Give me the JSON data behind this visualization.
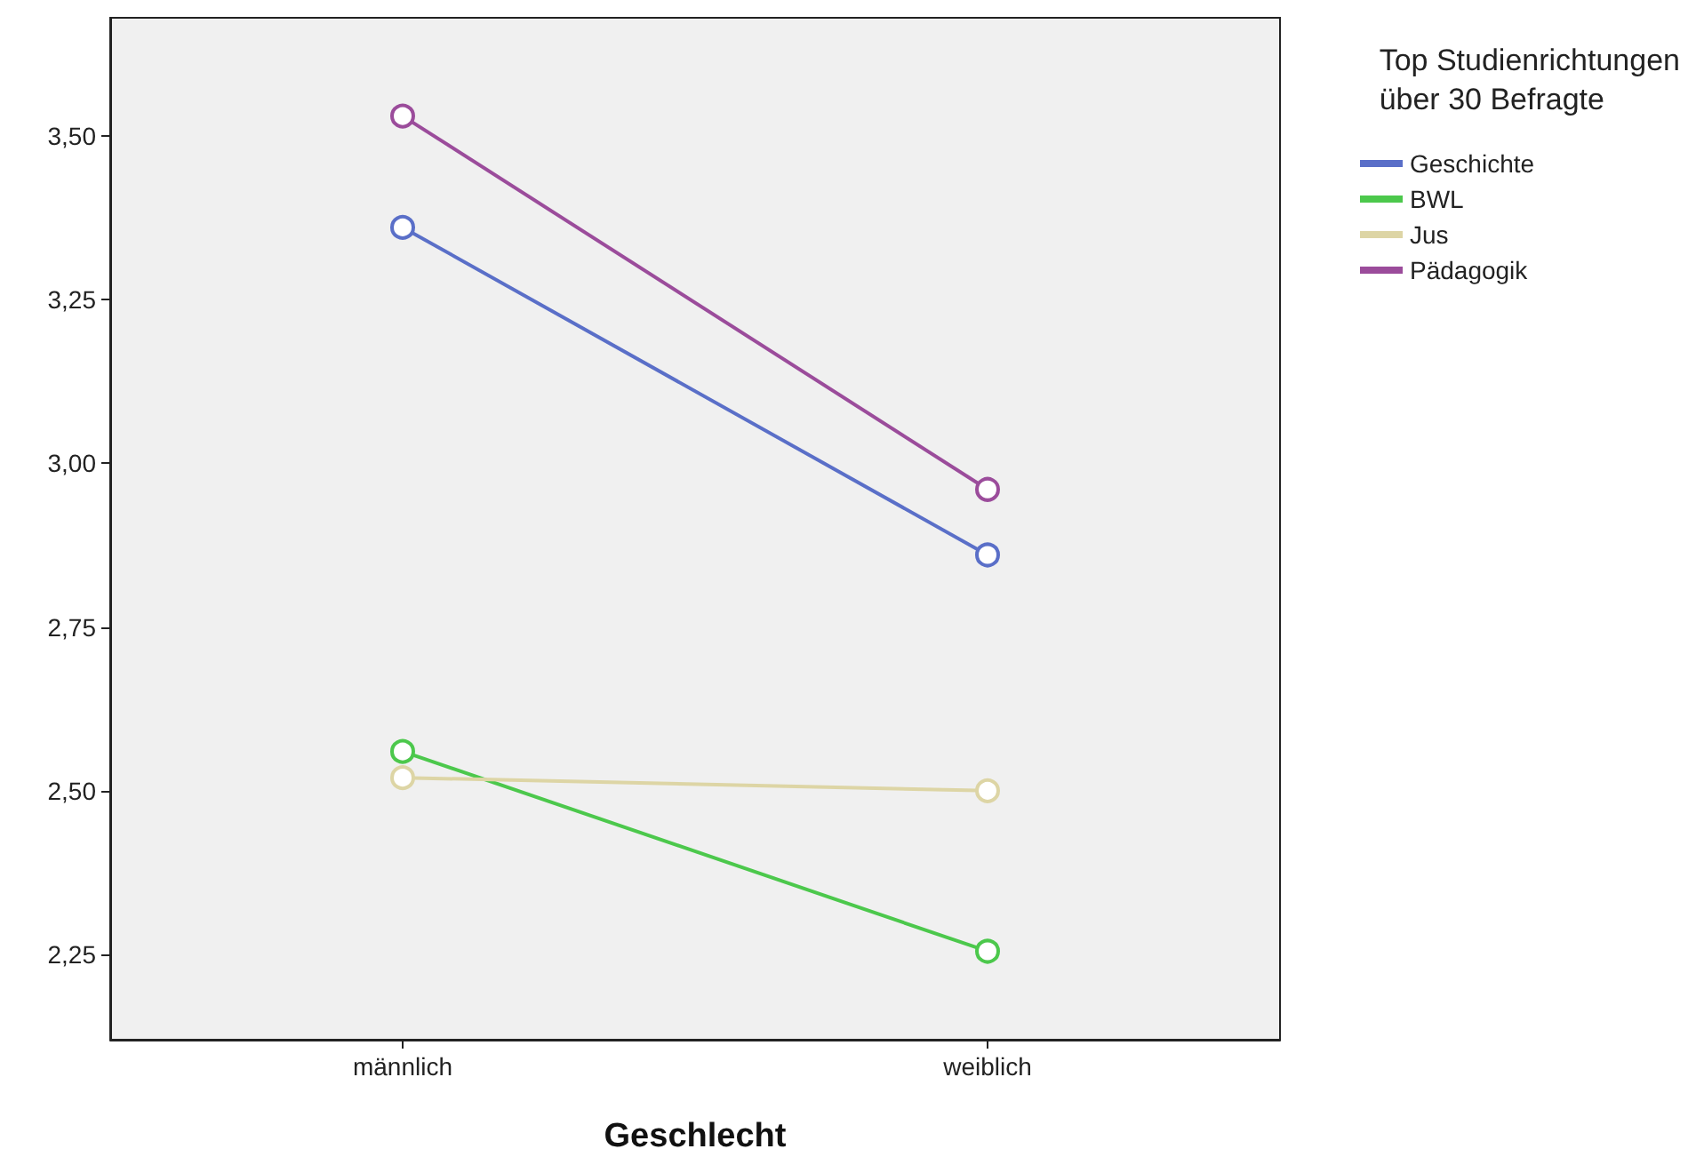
{
  "chart_data": {
    "type": "line",
    "xlabel": "Geschlecht",
    "legend_title": "Top Studienrichtungen\nüber 30 Befragte",
    "categories": [
      "männlich",
      "weiblich"
    ],
    "series": [
      {
        "name": "Geschichte",
        "color": "#5a6fc8",
        "values": [
          3.36,
          2.86
        ]
      },
      {
        "name": "BWL",
        "color": "#4cc84c",
        "values": [
          2.56,
          2.255
        ]
      },
      {
        "name": "Jus",
        "color": "#ddd5a5",
        "values": [
          2.52,
          2.5
        ]
      },
      {
        "name": "Pädagogik",
        "color": "#9b4c9b",
        "values": [
          3.53,
          2.96
        ]
      }
    ],
    "ylim": [
      2.12,
      3.68
    ],
    "yticks": [
      {
        "value": 2.25,
        "label": "2,25"
      },
      {
        "value": 2.5,
        "label": "2,50"
      },
      {
        "value": 2.75,
        "label": "2,75"
      },
      {
        "value": 3.0,
        "label": "3,00"
      },
      {
        "value": 3.25,
        "label": "3,25"
      },
      {
        "value": 3.5,
        "label": "3,50"
      }
    ],
    "grid": false,
    "legend": "right",
    "marker": "circle",
    "line_style": "solid"
  }
}
